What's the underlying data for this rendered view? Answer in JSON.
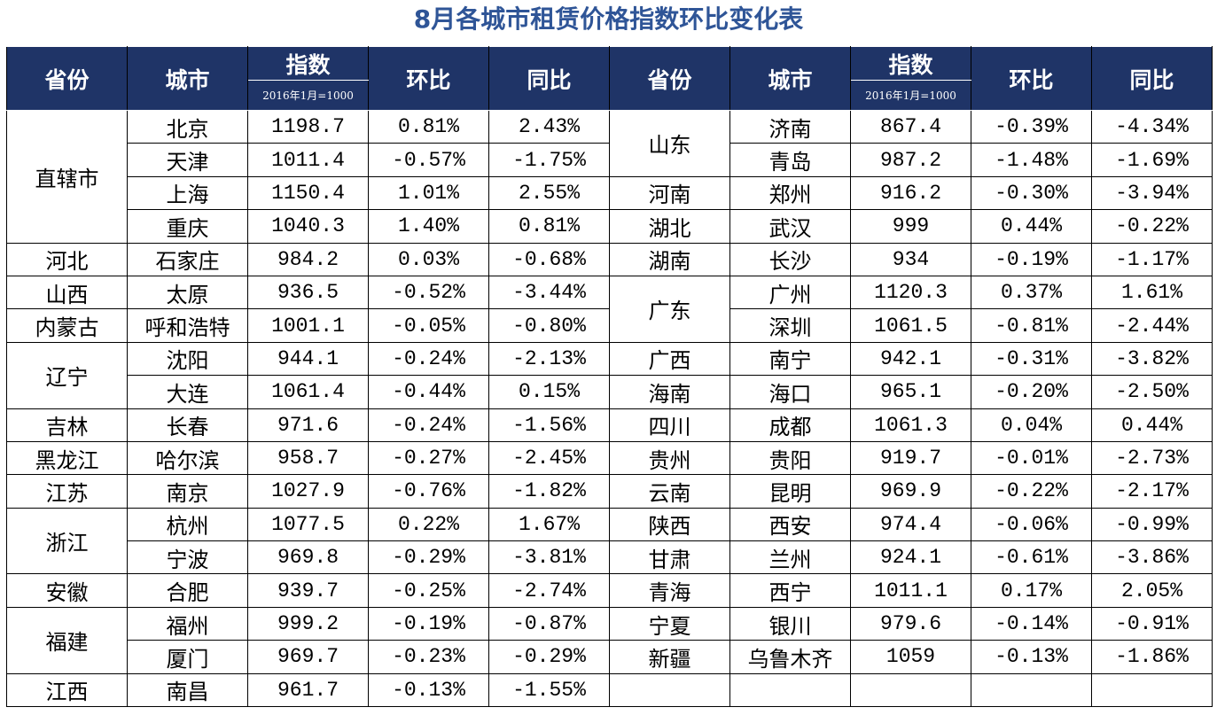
{
  "title": "8月各城市租赁价格指数环比变化表",
  "table": {
    "header": {
      "province": "省份",
      "city": "城市",
      "index": "指数",
      "index_note": "2016年1月=1000",
      "mom": "环比",
      "yoy": "同比"
    },
    "left": [
      {
        "province": "直辖市",
        "cities": [
          [
            "北京",
            "1198.7",
            "0.81%",
            "2.43%"
          ],
          [
            "天津",
            "1011.4",
            "-0.57%",
            "-1.75%"
          ],
          [
            "上海",
            "1150.4",
            "1.01%",
            "2.55%"
          ],
          [
            "重庆",
            "1040.3",
            "1.40%",
            "0.81%"
          ]
        ]
      },
      {
        "province": "河北",
        "cities": [
          [
            "石家庄",
            "984.2",
            "0.03%",
            "-0.68%"
          ]
        ]
      },
      {
        "province": "山西",
        "cities": [
          [
            "太原",
            "936.5",
            "-0.52%",
            "-3.44%"
          ]
        ]
      },
      {
        "province": "内蒙古",
        "cities": [
          [
            "呼和浩特",
            "1001.1",
            "-0.05%",
            "-0.80%"
          ]
        ]
      },
      {
        "province": "辽宁",
        "cities": [
          [
            "沈阳",
            "944.1",
            "-0.24%",
            "-2.13%"
          ],
          [
            "大连",
            "1061.4",
            "-0.44%",
            "0.15%"
          ]
        ]
      },
      {
        "province": "吉林",
        "cities": [
          [
            "长春",
            "971.6",
            "-0.24%",
            "-1.56%"
          ]
        ]
      },
      {
        "province": "黑龙江",
        "cities": [
          [
            "哈尔滨",
            "958.7",
            "-0.27%",
            "-2.45%"
          ]
        ]
      },
      {
        "province": "江苏",
        "cities": [
          [
            "南京",
            "1027.9",
            "-0.76%",
            "-1.82%"
          ]
        ]
      },
      {
        "province": "浙江",
        "cities": [
          [
            "杭州",
            "1077.5",
            "0.22%",
            "1.67%"
          ],
          [
            "宁波",
            "969.8",
            "-0.29%",
            "-3.81%"
          ]
        ]
      },
      {
        "province": "安徽",
        "cities": [
          [
            "合肥",
            "939.7",
            "-0.25%",
            "-2.74%"
          ]
        ]
      },
      {
        "province": "福建",
        "cities": [
          [
            "福州",
            "999.2",
            "-0.19%",
            "-0.87%"
          ],
          [
            "厦门",
            "969.7",
            "-0.23%",
            "-0.29%"
          ]
        ]
      },
      {
        "province": "江西",
        "cities": [
          [
            "南昌",
            "961.7",
            "-0.13%",
            "-1.55%"
          ]
        ]
      }
    ],
    "right": [
      {
        "province": "山东",
        "cities": [
          [
            "济南",
            "867.4",
            "-0.39%",
            "-4.34%"
          ],
          [
            "青岛",
            "987.2",
            "-1.48%",
            "-1.69%"
          ]
        ]
      },
      {
        "province": "河南",
        "cities": [
          [
            "郑州",
            "916.2",
            "-0.30%",
            "-3.94%"
          ]
        ]
      },
      {
        "province": "湖北",
        "cities": [
          [
            "武汉",
            "999",
            "0.44%",
            "-0.22%"
          ]
        ]
      },
      {
        "province": "湖南",
        "cities": [
          [
            "长沙",
            "934",
            "-0.19%",
            "-1.17%"
          ]
        ]
      },
      {
        "province": "广东",
        "cities": [
          [
            "广州",
            "1120.3",
            "0.37%",
            "1.61%"
          ],
          [
            "深圳",
            "1061.5",
            "-0.81%",
            "-2.44%"
          ]
        ]
      },
      {
        "province": "广西",
        "cities": [
          [
            "南宁",
            "942.1",
            "-0.31%",
            "-3.82%"
          ]
        ]
      },
      {
        "province": "海南",
        "cities": [
          [
            "海口",
            "965.1",
            "-0.20%",
            "-2.50%"
          ]
        ]
      },
      {
        "province": "四川",
        "cities": [
          [
            "成都",
            "1061.3",
            "0.04%",
            "0.44%"
          ]
        ]
      },
      {
        "province": "贵州",
        "cities": [
          [
            "贵阳",
            "919.7",
            "-0.01%",
            "-2.73%"
          ]
        ]
      },
      {
        "province": "云南",
        "cities": [
          [
            "昆明",
            "969.9",
            "-0.22%",
            "-2.17%"
          ]
        ]
      },
      {
        "province": "陕西",
        "cities": [
          [
            "西安",
            "974.4",
            "-0.06%",
            "-0.99%"
          ]
        ]
      },
      {
        "province": "甘肃",
        "cities": [
          [
            "兰州",
            "924.1",
            "-0.61%",
            "-3.86%"
          ]
        ]
      },
      {
        "province": "青海",
        "cities": [
          [
            "西宁",
            "1011.1",
            "0.17%",
            "2.05%"
          ]
        ]
      },
      {
        "province": "宁夏",
        "cities": [
          [
            "银川",
            "979.6",
            "-0.14%",
            "-0.91%"
          ]
        ]
      },
      {
        "province": "新疆",
        "cities": [
          [
            "乌鲁木齐",
            "1059",
            "-0.13%",
            "-1.86%"
          ]
        ]
      }
    ]
  }
}
